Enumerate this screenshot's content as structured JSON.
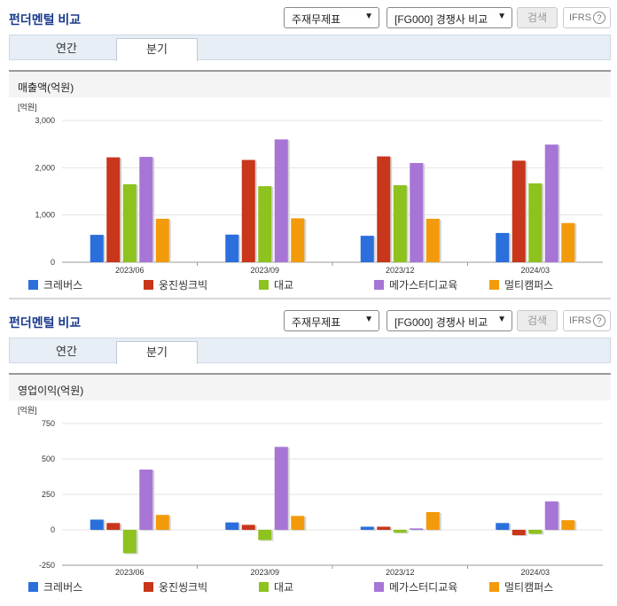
{
  "panels": [
    {
      "title": "펀더멘털 비교",
      "select_statement": "주재무제표",
      "select_compare": "[FG000] 경쟁사 비교",
      "search_label": "검색",
      "ifrs_label": "IFRS",
      "tabs": [
        "연간",
        "분기"
      ],
      "active_tab": 1,
      "metric_label": "매출액(억원)"
    },
    {
      "title": "펀더멘털 비교",
      "select_statement": "주재무제표",
      "select_compare": "[FG000] 경쟁사 비교",
      "search_label": "검색",
      "ifrs_label": "IFRS",
      "tabs": [
        "연간",
        "분기"
      ],
      "active_tab": 1,
      "metric_label": "영업이익(억원)"
    }
  ],
  "colors": {
    "크레버스": "#2a6fdb",
    "웅진씽크빅": "#c8361b",
    "대교": "#8dc21f",
    "메가스터디교육": "#a775d6",
    "멀티캠퍼스": "#f39a0b"
  },
  "chart_data": [
    {
      "type": "bar",
      "unit": "[억원]",
      "categories": [
        "2023/06",
        "2023/09",
        "2023/12",
        "2024/03"
      ],
      "ylim": [
        0,
        3000
      ],
      "yticks": [
        "0",
        "1,000",
        "2,000",
        "3,000"
      ],
      "ytick_values": [
        0,
        1000,
        2000,
        3000
      ],
      "series": [
        {
          "name": "크레버스",
          "values": [
            580,
            585,
            560,
            620
          ]
        },
        {
          "name": "웅진씽크빅",
          "values": [
            2220,
            2165,
            2240,
            2150
          ]
        },
        {
          "name": "대교",
          "values": [
            1650,
            1610,
            1630,
            1670
          ]
        },
        {
          "name": "메가스터디교육",
          "values": [
            2230,
            2600,
            2100,
            2490
          ]
        },
        {
          "name": "멀티캠퍼스",
          "values": [
            920,
            930,
            920,
            830
          ]
        }
      ],
      "grid": true,
      "legend": "bottom"
    },
    {
      "type": "bar",
      "unit": "[억원]",
      "categories": [
        "2023/06",
        "2023/09",
        "2023/12",
        "2024/03"
      ],
      "ylim": [
        -250,
        750
      ],
      "yticks": [
        "-250",
        "0",
        "250",
        "500",
        "750"
      ],
      "ytick_values": [
        -250,
        0,
        250,
        500,
        750
      ],
      "series": [
        {
          "name": "크레버스",
          "values": [
            72,
            52,
            22,
            48
          ]
        },
        {
          "name": "웅진씽크빅",
          "values": [
            48,
            35,
            22,
            -38
          ]
        },
        {
          "name": "대교",
          "values": [
            -165,
            -72,
            -20,
            -28
          ]
        },
        {
          "name": "메가스터디교육",
          "values": [
            425,
            585,
            10,
            200
          ]
        },
        {
          "name": "멀티캠퍼스",
          "values": [
            105,
            98,
            125,
            68
          ]
        }
      ],
      "grid": true,
      "legend": "bottom"
    }
  ]
}
